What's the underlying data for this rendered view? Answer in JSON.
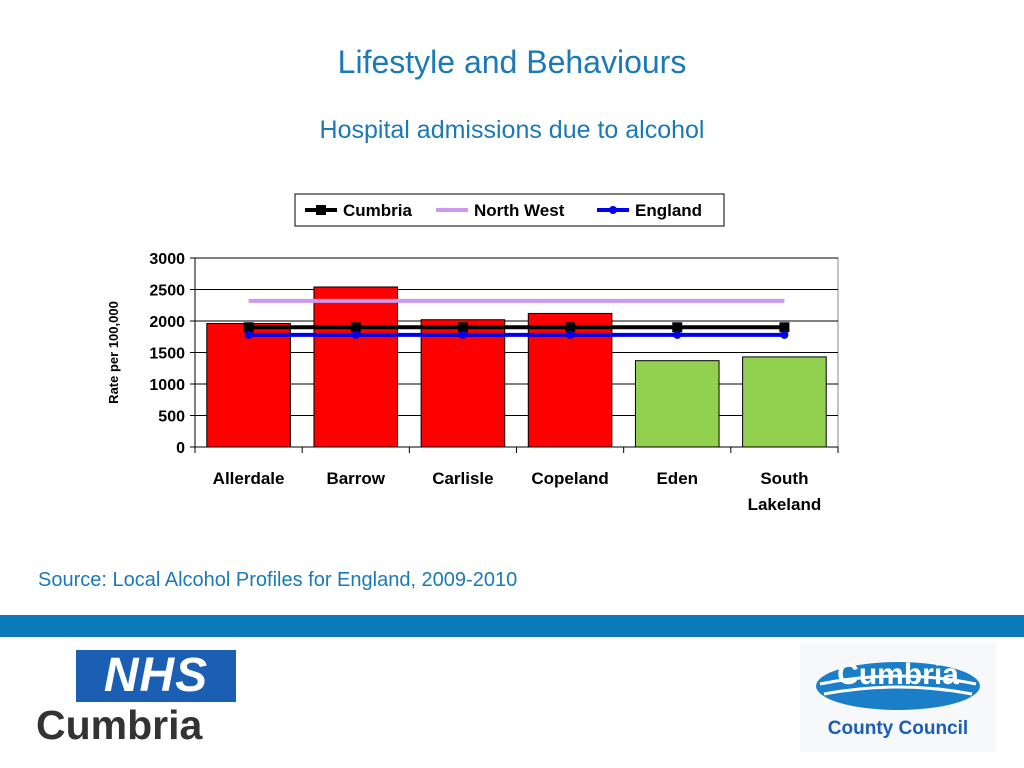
{
  "slide": {
    "title": "Lifestyle and Behaviours",
    "subtitle": "Hospital admissions due to alcohol",
    "source": "Source: Local Alcohol Profiles for England, 2009-2010"
  },
  "logos": {
    "nhs_mark": "NHS",
    "nhs_name": "Cumbria",
    "council_name": "Cumbria",
    "council_sub": "County Council"
  },
  "colors": {
    "accent": "#1a7ab5",
    "band": "#0a7ab8",
    "bar_red": "#ff0000",
    "bar_green": "#92d050"
  },
  "chart_data": {
    "type": "bar",
    "title": "",
    "xlabel": "",
    "ylabel": "Rate per 100,000",
    "ylim": [
      0,
      3000
    ],
    "yticks": [
      0,
      500,
      1000,
      1500,
      2000,
      2500,
      3000
    ],
    "categories": [
      "Allerdale",
      "Barrow",
      "Carlisle",
      "Copeland",
      "Eden",
      "South Lakeland"
    ],
    "values": [
      1960,
      2540,
      2020,
      2120,
      1370,
      1430
    ],
    "bar_colors": [
      "#ff0000",
      "#ff0000",
      "#ff0000",
      "#ff0000",
      "#92d050",
      "#92d050"
    ],
    "grid": true,
    "legend_position": "top",
    "series": [
      {
        "name": "Cumbria",
        "type": "line",
        "values": [
          1900,
          1900,
          1900,
          1900,
          1900,
          1900
        ],
        "color": "#000000",
        "marker": "square"
      },
      {
        "name": "North West",
        "type": "line",
        "values": [
          2320,
          2320,
          2320,
          2320,
          2320,
          2320
        ],
        "color": "#cc99ee",
        "marker": "none"
      },
      {
        "name": "England",
        "type": "line",
        "values": [
          1780,
          1780,
          1780,
          1780,
          1780,
          1780
        ],
        "color": "#0000ee",
        "marker": "circle"
      }
    ]
  }
}
